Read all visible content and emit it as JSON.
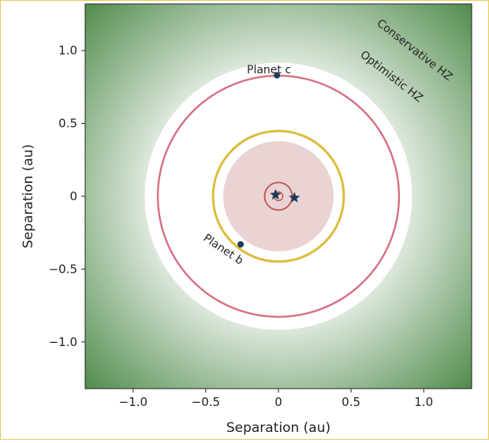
{
  "chart_data": {
    "type": "scatter",
    "title": "",
    "xlabel": "Separation (au)",
    "ylabel": "Separation (au)",
    "xlim": [
      -1.33,
      1.33
    ],
    "ylim": [
      -1.32,
      1.32
    ],
    "xticks": [
      -1.0,
      -0.5,
      0,
      0.5,
      1.0
    ],
    "yticks": [
      -1.0,
      -0.5,
      0,
      0.5,
      1.0
    ],
    "xtick_labels": [
      "−1.0",
      "−0.5",
      "0",
      "0.5",
      "1.0"
    ],
    "ytick_labels": [
      "−1.0",
      "−0.5",
      "0",
      "0.5",
      "1.0"
    ],
    "grid": false,
    "zones": [
      {
        "name": "Conservative HZ",
        "inner_radius": 0.68,
        "outer_radius": 1.33,
        "color": "#4e8a4a"
      },
      {
        "name": "Optimistic HZ",
        "inner_radius": 0.0,
        "outer_radius": 0.92,
        "color": "#ffffff"
      },
      {
        "name": "inner-disk",
        "radius": 0.38,
        "color": "#ead3d3"
      }
    ],
    "orbits": [
      {
        "name": "Planet c",
        "radius": 0.83,
        "color": "#d66f84"
      },
      {
        "name": "Planet b",
        "radius": 0.45,
        "color": "#dcbc3c"
      },
      {
        "name": "binary-outer",
        "radius": 0.095,
        "color": "#c0504a"
      },
      {
        "name": "binary-inner",
        "radius": 0.03,
        "color": "#c0504a"
      }
    ],
    "planets": [
      {
        "label": "Planet c",
        "x": -0.01,
        "y": 0.83
      },
      {
        "label": "Planet b",
        "x": -0.26,
        "y": -0.33
      }
    ],
    "stars": [
      {
        "x": -0.02,
        "y": 0.01
      },
      {
        "x": 0.11,
        "y": -0.01
      }
    ],
    "colors": {
      "marker": "#1e3a5a",
      "axis": "#222222"
    }
  }
}
